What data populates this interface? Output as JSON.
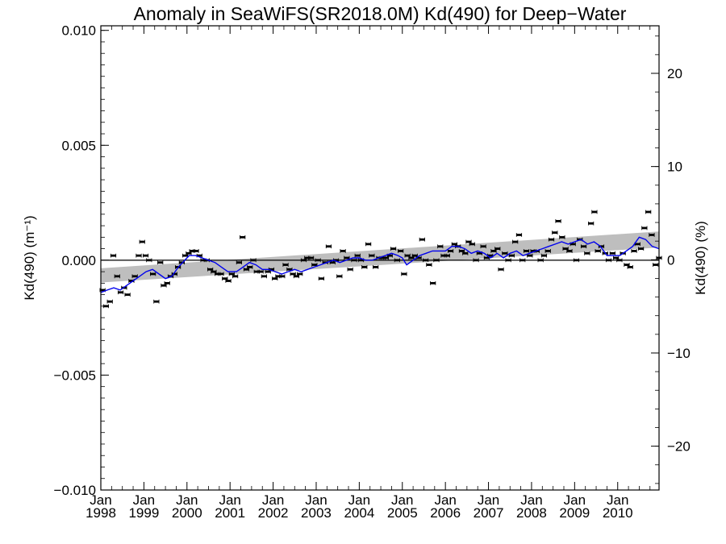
{
  "chart_data": {
    "type": "scatter",
    "title": "Anomaly in SeaWiFS(SR2018.0M) Kd(490) for Deep−Water",
    "ylabel_left": "Kd(490) (m⁻¹)",
    "ylabel_right": "Kd(490) (%)",
    "ylim": [
      -0.01,
      0.0102
    ],
    "ylim_right": [
      -24.7,
      25.1
    ],
    "xlim": [
      1998.0,
      2010.96
    ],
    "y_ticks_left": [
      {
        "value": 0.01,
        "label": "0.010"
      },
      {
        "value": 0.005,
        "label": "0.005"
      },
      {
        "value": 0.0,
        "label": "0.000"
      },
      {
        "value": -0.005,
        "label": "−0.005"
      },
      {
        "value": -0.01,
        "label": "−0.010"
      }
    ],
    "y_ticks_right": [
      {
        "value": 20,
        "label": "20"
      },
      {
        "value": 10,
        "label": "10"
      },
      {
        "value": 0,
        "label": "0"
      },
      {
        "value": -10,
        "label": "−10"
      },
      {
        "value": -20,
        "label": "−20"
      }
    ],
    "x_ticks": [
      {
        "value": 1998,
        "month": "Jan",
        "year": "1998"
      },
      {
        "value": 1999,
        "month": "Jan",
        "year": "1999"
      },
      {
        "value": 2000,
        "month": "Jan",
        "year": "2000"
      },
      {
        "value": 2001,
        "month": "Jan",
        "year": "2001"
      },
      {
        "value": 2002,
        "month": "Jan",
        "year": "2002"
      },
      {
        "value": 2003,
        "month": "Jan",
        "year": "2003"
      },
      {
        "value": 2004,
        "month": "Jan",
        "year": "2004"
      },
      {
        "value": 2005,
        "month": "Jan",
        "year": "2005"
      },
      {
        "value": 2006,
        "month": "Jan",
        "year": "2006"
      },
      {
        "value": 2007,
        "month": "Jan",
        "year": "2007"
      },
      {
        "value": 2008,
        "month": "Jan",
        "year": "2008"
      },
      {
        "value": 2009,
        "month": "Jan",
        "year": "2009"
      },
      {
        "value": 2010,
        "month": "Jan",
        "year": "2010"
      }
    ],
    "zero_line": 0.0,
    "trend_band": {
      "x": [
        1998.0,
        2010.96
      ],
      "lower": [
        -0.00097,
        0.00055
      ],
      "upper": [
        -0.00035,
        0.00125
      ],
      "color": "#bebebe"
    },
    "monthly_anomaly": {
      "color": "#000000",
      "x": [
        1998.04,
        1998.12,
        1998.21,
        1998.29,
        1998.38,
        1998.46,
        1998.54,
        1998.62,
        1998.71,
        1998.79,
        1998.88,
        1998.96,
        1999.04,
        1999.12,
        1999.21,
        1999.29,
        1999.38,
        1999.46,
        1999.54,
        1999.62,
        1999.71,
        1999.79,
        1999.88,
        1999.96,
        2000.04,
        2000.12,
        2000.21,
        2000.29,
        2000.38,
        2000.46,
        2000.54,
        2000.62,
        2000.71,
        2000.79,
        2000.88,
        2000.96,
        2001.04,
        2001.12,
        2001.21,
        2001.29,
        2001.38,
        2001.46,
        2001.54,
        2001.62,
        2001.71,
        2001.79,
        2001.88,
        2001.96,
        2002.04,
        2002.12,
        2002.21,
        2002.29,
        2002.38,
        2002.46,
        2002.54,
        2002.62,
        2002.71,
        2002.79,
        2002.88,
        2002.96,
        2003.04,
        2003.12,
        2003.21,
        2003.29,
        2003.38,
        2003.46,
        2003.54,
        2003.62,
        2003.71,
        2003.79,
        2003.88,
        2003.96,
        2004.04,
        2004.12,
        2004.21,
        2004.29,
        2004.38,
        2004.46,
        2004.54,
        2004.62,
        2004.71,
        2004.79,
        2004.88,
        2004.96,
        2005.04,
        2005.12,
        2005.21,
        2005.29,
        2005.38,
        2005.46,
        2005.54,
        2005.62,
        2005.71,
        2005.79,
        2005.88,
        2005.96,
        2006.04,
        2006.12,
        2006.21,
        2006.29,
        2006.38,
        2006.46,
        2006.54,
        2006.62,
        2006.71,
        2006.79,
        2006.88,
        2006.96,
        2007.04,
        2007.12,
        2007.21,
        2007.29,
        2007.38,
        2007.46,
        2007.54,
        2007.62,
        2007.71,
        2007.79,
        2007.88,
        2007.96,
        2008.04,
        2008.12,
        2008.21,
        2008.29,
        2008.38,
        2008.46,
        2008.54,
        2008.62,
        2008.71,
        2008.79,
        2008.88,
        2008.96,
        2009.04,
        2009.12,
        2009.21,
        2009.29,
        2009.38,
        2009.46,
        2009.54,
        2009.62,
        2009.71,
        2009.79,
        2009.88,
        2009.96,
        2010.04,
        2010.12,
        2010.21,
        2010.29,
        2010.38,
        2010.46,
        2010.54,
        2010.62,
        2010.71,
        2010.79,
        2010.88,
        2010.96
      ],
      "y": [
        -0.0013,
        -0.002,
        -0.0018,
        0.0002,
        -0.0007,
        -0.0014,
        -0.0012,
        -0.0015,
        -0.0009,
        -0.0007,
        0.0002,
        0.0008,
        0.0002,
        0.0,
        -0.0006,
        -0.0018,
        -0.0001,
        -0.0011,
        -0.001,
        -0.0007,
        -0.0006,
        -0.0003,
        -0.0001,
        0.0002,
        0.0003,
        0.0004,
        0.0004,
        0.0002,
        0.0,
        0.0,
        -0.0004,
        -0.0005,
        -0.0006,
        -0.0006,
        -0.0008,
        -0.0009,
        -0.0006,
        -0.0007,
        -0.0001,
        0.001,
        -0.0004,
        -0.0003,
        0.0,
        -0.0005,
        -0.0005,
        -0.0007,
        -0.0005,
        -0.0004,
        -0.0008,
        -0.0007,
        -0.0007,
        -0.0002,
        -0.0004,
        -0.0006,
        -0.0007,
        -0.0006,
        0.0,
        0.0001,
        0.0001,
        -0.0002,
        0.0,
        -0.0008,
        -0.0001,
        0.0006,
        -0.0001,
        0.0,
        -0.0007,
        0.0004,
        0.0001,
        -0.0004,
        0.0,
        0.0002,
        0.0,
        -0.0003,
        0.0007,
        0.0002,
        -0.0003,
        0.0001,
        0.0001,
        0.0001,
        0.0002,
        0.0005,
        0.0,
        0.0004,
        -0.0006,
        0.0002,
        0.0001,
        0.0002,
        0.0001,
        0.0009,
        0.0,
        -0.0002,
        -0.001,
        0.0,
        0.0006,
        0.0002,
        0.0002,
        0.0004,
        0.0007,
        0.0006,
        0.0004,
        0.0003,
        0.0008,
        0.0007,
        0.0,
        0.0003,
        0.0006,
        0.0001,
        0.0002,
        0.0004,
        0.0005,
        -0.0004,
        0.0003,
        0.0,
        0.0002,
        0.0008,
        0.0011,
        0.0,
        0.0004,
        0.0002,
        0.0004,
        0.0004,
        0.0,
        0.0002,
        0.0004,
        0.0009,
        0.0012,
        0.0017,
        0.001,
        0.0005,
        0.0004,
        0.0007,
        0.0,
        0.0009,
        0.0006,
        0.0003,
        0.0016,
        0.0021,
        0.0004,
        0.0006,
        0.0003,
        0.0,
        0.0003,
        0.0001,
        0.0,
        0.0003,
        -0.0002,
        -0.0003,
        0.0004,
        0.0007,
        0.0005,
        0.0014,
        0.0021,
        0.0011,
        -0.0002,
        0.0001
      ]
    },
    "running_mean": {
      "color": "#0000ee",
      "x": [
        1998.0,
        1998.15,
        1998.3,
        1998.45,
        1998.6,
        1998.75,
        1998.9,
        1999.05,
        1999.2,
        1999.35,
        1999.5,
        1999.65,
        1999.8,
        1999.95,
        2000.05,
        2000.2,
        2000.35,
        2000.5,
        2000.65,
        2000.8,
        2000.95,
        2001.05,
        2001.15,
        2001.3,
        2001.45,
        2001.6,
        2001.75,
        2001.9,
        2002.05,
        2002.2,
        2002.35,
        2002.5,
        2002.65,
        2002.8,
        2002.95,
        2003.1,
        2003.25,
        2003.4,
        2003.55,
        2003.7,
        2003.85,
        2004.0,
        2004.15,
        2004.3,
        2004.45,
        2004.6,
        2004.75,
        2004.9,
        2005.0,
        2005.1,
        2005.25,
        2005.4,
        2005.55,
        2005.7,
        2005.85,
        2006.0,
        2006.15,
        2006.3,
        2006.45,
        2006.6,
        2006.75,
        2006.9,
        2007.05,
        2007.2,
        2007.35,
        2007.5,
        2007.65,
        2007.8,
        2007.95,
        2008.1,
        2008.25,
        2008.4,
        2008.55,
        2008.7,
        2008.85,
        2009.0,
        2009.15,
        2009.3,
        2009.45,
        2009.6,
        2009.75,
        2009.9,
        2010.05,
        2010.2,
        2010.35,
        2010.5,
        2010.65,
        2010.8,
        2010.96
      ],
      "y": [
        -0.0014,
        -0.0013,
        -0.0012,
        -0.0013,
        -0.0011,
        -0.0009,
        -0.0007,
        -0.0005,
        -0.0004,
        -0.0006,
        -0.0008,
        -0.0007,
        -0.0003,
        0.0,
        0.0002,
        0.0002,
        0.0001,
        0.0,
        -0.0001,
        -0.0003,
        -0.0005,
        -0.0005,
        -0.0005,
        -0.0003,
        -0.0001,
        -0.0002,
        -0.0004,
        -0.0004,
        -0.0005,
        -0.0006,
        -0.0005,
        -0.0004,
        -0.0005,
        -0.0004,
        -0.0003,
        -0.0002,
        -0.0001,
        0.0,
        -0.0001,
        0.0,
        0.0001,
        0.0001,
        0.0,
        0.0,
        0.0001,
        0.0002,
        0.0003,
        0.0002,
        0.0001,
        -0.0002,
        0.0,
        0.0002,
        0.0003,
        0.0004,
        0.0004,
        0.0004,
        0.0006,
        0.0006,
        0.0005,
        0.0003,
        0.0004,
        0.0003,
        0.0001,
        0.0003,
        0.0001,
        0.0003,
        0.0004,
        0.0002,
        0.0003,
        0.0004,
        0.0005,
        0.0006,
        0.0007,
        0.0008,
        0.0007,
        0.0008,
        0.0009,
        0.0007,
        0.0008,
        0.0006,
        0.0002,
        0.0002,
        0.0002,
        0.0004,
        0.0006,
        0.001,
        0.0009,
        0.0006,
        0.0005
      ]
    }
  }
}
